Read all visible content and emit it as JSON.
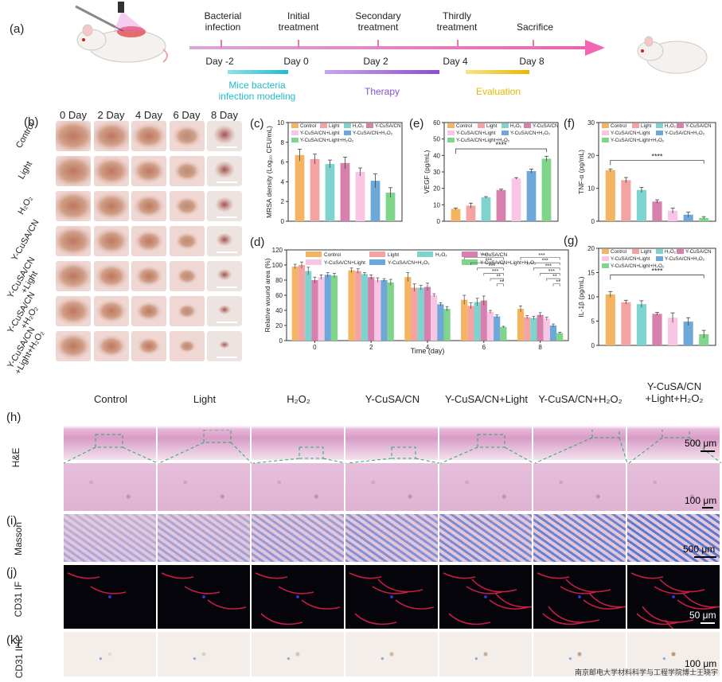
{
  "panels": {
    "a": "(a)",
    "b": "(b)",
    "c": "(c)",
    "d": "(d)",
    "e": "(e)",
    "f": "(f)",
    "g": "(g)",
    "h": "(h)",
    "i": "(i)",
    "j": "(j)",
    "k": "(k)"
  },
  "timeline": {
    "events": [
      "Bacterial\ninfection",
      "Initial\ntreatment",
      "Secondary\ntreatment",
      "Thirdly\ntreatment",
      "Sacrifice"
    ],
    "days": [
      "Day -2",
      "Day 0",
      "Day 2",
      "Day 4",
      "Day 8"
    ],
    "phases": [
      {
        "label": "Mice bacteria\ninfection modeling",
        "color": "#1fbccd"
      },
      {
        "label": "Therapy",
        "color": "#8a4fd1"
      },
      {
        "label": "Evaluation",
        "color": "#e8b800"
      }
    ],
    "arrow_color": "#ee66aa"
  },
  "wound_photos": {
    "columns": [
      "0 Day",
      "2 Day",
      "4 Day",
      "6 Day",
      "8 Day"
    ],
    "rows": [
      "Control",
      "Light",
      "H₂O₂",
      "Y-CuSA/CN",
      "Y-CuSA/CN\n+Light",
      "Y-CuSA/CN\n+H₂O₂",
      "Y-CuSA/CN\n+Light+H₂O₂"
    ]
  },
  "groups": [
    "Control",
    "Light",
    "H₂O₂",
    "Y-CuSA/CN",
    "Y-CuSA/CN+Light",
    "Y-CuSA/CN+H₂O₂",
    "Y-CuSA/CN+Light+H₂O₂"
  ],
  "group_colors": [
    "#f5b461",
    "#f4a3a3",
    "#7fd3cf",
    "#d77fad",
    "#f8c6e4",
    "#6ea8d8",
    "#7fd68a"
  ],
  "chart_data": [
    {
      "id": "c",
      "type": "bar",
      "ylabel": "MRSA density (Log₁₀ CFU/mL)",
      "ylim": [
        0,
        10
      ],
      "yticks": [
        0,
        2,
        4,
        6,
        8,
        10
      ],
      "categories": [
        "Control",
        "Light",
        "H₂O₂",
        "Y-CuSA/CN",
        "Y-CuSA/CN+Light",
        "Y-CuSA/CN+H₂O₂",
        "Y-CuSA/CN+Light+H₂O₂"
      ],
      "values": [
        6.7,
        6.3,
        5.8,
        5.9,
        5.0,
        4.1,
        2.9
      ],
      "errors": [
        0.6,
        0.5,
        0.4,
        0.6,
        0.4,
        0.7,
        0.5
      ]
    },
    {
      "id": "e",
      "type": "bar",
      "ylabel": "VEGF (pg/mL)",
      "ylim": [
        0,
        60
      ],
      "yticks": [
        0,
        10,
        20,
        30,
        40,
        50,
        60
      ],
      "categories": [
        "Control",
        "Light",
        "H₂O₂",
        "Y-CuSA/CN",
        "Y-CuSA/CN+Light",
        "Y-CuSA/CN+H₂O₂",
        "Y-CuSA/CN+Light+H₂O₂"
      ],
      "values": [
        7.5,
        9.5,
        14.5,
        19.0,
        26.0,
        30.5,
        38.0
      ],
      "errors": [
        0.5,
        1.5,
        0.5,
        0.5,
        0.5,
        1.2,
        1.5
      ],
      "significance": "****"
    },
    {
      "id": "f",
      "type": "bar",
      "ylabel": "TNF-α (pg/mL)",
      "ylim": [
        0,
        30
      ],
      "yticks": [
        0,
        10,
        20,
        30
      ],
      "categories": [
        "Control",
        "Light",
        "H₂O₂",
        "Y-CuSA/CN",
        "Y-CuSA/CN+Light",
        "Y-CuSA/CN+H₂O₂",
        "Y-CuSA/CN+Light+H₂O₂"
      ],
      "values": [
        15.5,
        12.5,
        9.5,
        6.0,
        3.2,
        2.0,
        1.0
      ],
      "errors": [
        0.4,
        0.8,
        0.8,
        0.5,
        0.8,
        0.8,
        0.4
      ],
      "significance": "****"
    },
    {
      "id": "g",
      "type": "bar",
      "ylabel": "IL-1β (pg/mL)",
      "ylim": [
        0,
        20
      ],
      "yticks": [
        0,
        5,
        10,
        15,
        20
      ],
      "categories": [
        "Control",
        "Light",
        "H₂O₂",
        "Y-CuSA/CN",
        "Y-CuSA/CN+Light",
        "Y-CuSA/CN+H₂O₂",
        "Y-CuSA/CN+Light+H₂O₂"
      ],
      "values": [
        10.5,
        8.9,
        8.5,
        6.5,
        5.7,
        4.9,
        2.3
      ],
      "errors": [
        0.6,
        0.4,
        0.7,
        0.3,
        1.0,
        0.8,
        0.8
      ],
      "significance": "****"
    },
    {
      "id": "d",
      "type": "bar",
      "ylabel": "Relative wound area (%)",
      "xlabel": "Time (day)",
      "ylim": [
        0,
        120
      ],
      "yticks": [
        0,
        20,
        40,
        60,
        80,
        100,
        120
      ],
      "categories": [
        "0",
        "2",
        "4",
        "6",
        "8"
      ],
      "series": [
        {
          "name": "Control",
          "values": [
            98,
            93,
            84,
            54,
            42
          ],
          "errors": [
            3,
            3,
            6,
            6,
            4
          ]
        },
        {
          "name": "Light",
          "values": [
            100,
            92,
            70,
            46,
            31
          ],
          "errors": [
            4,
            3,
            5,
            4,
            2
          ]
        },
        {
          "name": "H₂O₂",
          "values": [
            92,
            88,
            70,
            51,
            30
          ],
          "errors": [
            5,
            2,
            3,
            5,
            2
          ]
        },
        {
          "name": "Y-CuSA/CN",
          "values": [
            80,
            84,
            71,
            53,
            34
          ],
          "errors": [
            4,
            3,
            5,
            6,
            3
          ]
        },
        {
          "name": "Y-CuSA/CN+Light",
          "values": [
            84,
            80,
            60,
            38,
            29
          ],
          "errors": [
            3,
            3,
            2,
            2,
            2
          ]
        },
        {
          "name": "Y-CuSA/CN+H₂O₂",
          "values": [
            87,
            80,
            48,
            32,
            20
          ],
          "errors": [
            3,
            2,
            2,
            2,
            2
          ]
        },
        {
          "name": "Y-CuSA/CN+Light+H₂O₂",
          "values": [
            86,
            77,
            42,
            18,
            10
          ],
          "errors": [
            3,
            4,
            3,
            1,
            1
          ]
        }
      ],
      "significance_day6": [
        "***",
        "***",
        "***",
        "***",
        "**",
        "**"
      ],
      "significance_day8": [
        "***",
        "***",
        "***",
        "***",
        "**",
        "**"
      ]
    }
  ],
  "histology": {
    "columns": [
      "Control",
      "Light",
      "H₂O₂",
      "Y-CuSA/CN",
      "Y-CuSA/CN+Light",
      "Y-CuSA/CN+H₂O₂",
      "Y-CuSA/CN\n+Light+H₂O₂"
    ],
    "rows": [
      "H&E",
      "Masson",
      "CD31 IF",
      "CD31 IHC"
    ],
    "scalebars": [
      "500 μm",
      "100 μm",
      "500 μm",
      "50 μm",
      "100 μm"
    ]
  },
  "watermark": "南京邮电大学材料科学与工程学院博士王晓宇"
}
